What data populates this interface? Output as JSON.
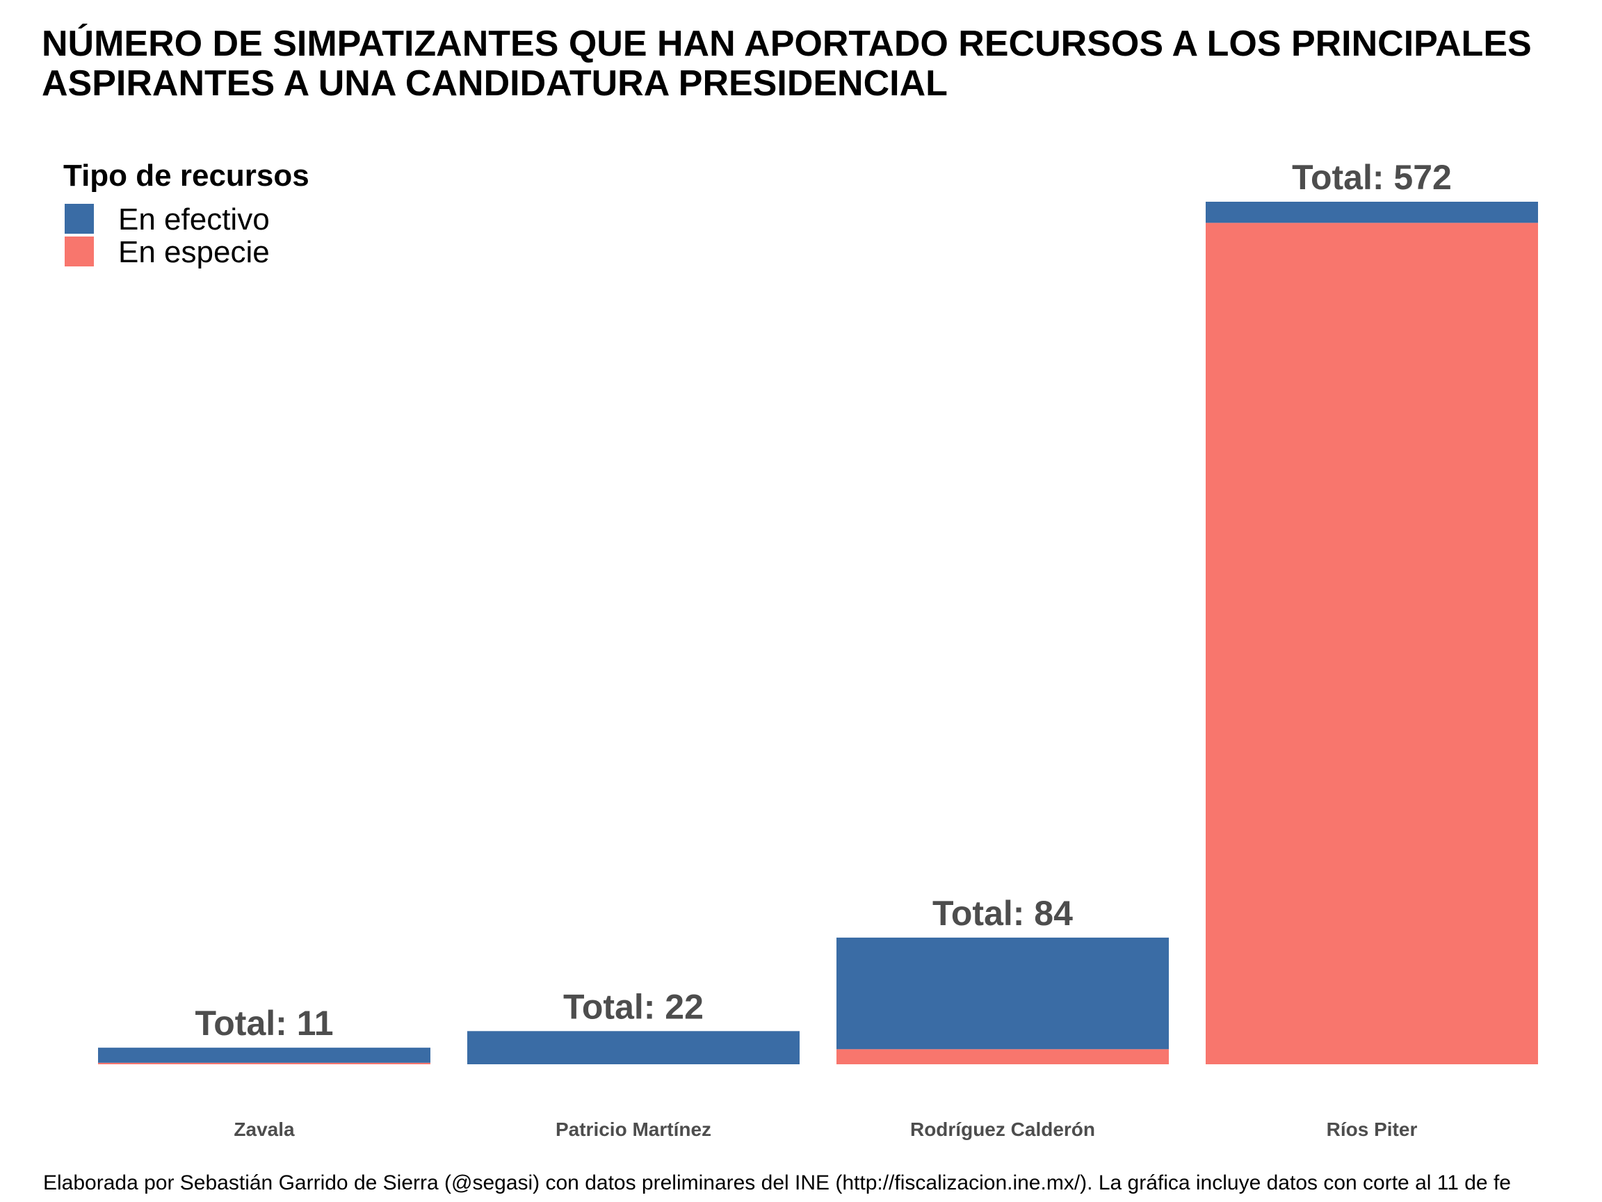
{
  "chart_data": {
    "type": "bar",
    "stacked": true,
    "title_lines": [
      "NÚMERO DE SIMPATIZANTES QUE HAN APORTADO RECURSOS A LOS PRINCIPALES",
      "ASPIRANTES A UNA CANDIDATURA PRESIDENCIAL"
    ],
    "legend": {
      "title": "Tipo de recursos",
      "placement": "top-left"
    },
    "categories": [
      "Zavala",
      "Patricio Martínez",
      "Rodríguez Calderón",
      "Ríos Piter"
    ],
    "series": [
      {
        "name": "En especie",
        "color": "#F8766D",
        "values": [
          1,
          0,
          10,
          558
        ]
      },
      {
        "name": "En efectivo",
        "color": "#3A6CA5",
        "values": [
          10,
          22,
          74,
          14
        ]
      }
    ],
    "totals": [
      11,
      22,
      84,
      572
    ],
    "total_labels": [
      "Total: 11",
      "Total: 22",
      "Total: 84",
      "Total: 572"
    ],
    "ylim": [
      0,
      572
    ],
    "grid": false,
    "caption": "Elaborada por Sebastián Garrido de Sierra (@segasi) con datos preliminares del INE (http://fiscalizacion.ine.mx/). La gráfica incluye datos con corte al 11 de fe"
  }
}
